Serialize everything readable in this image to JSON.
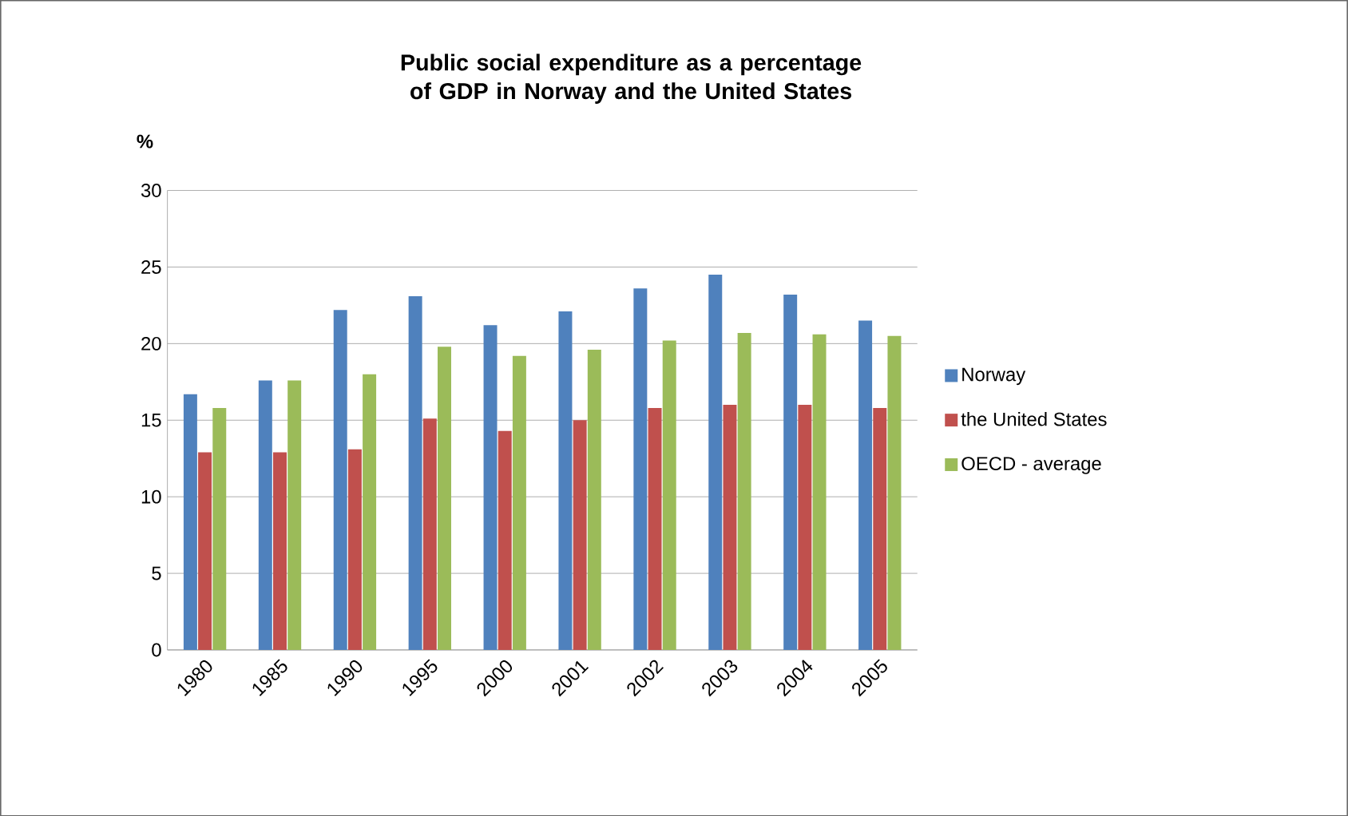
{
  "chart_data": {
    "type": "bar",
    "title": "Public social expenditure as a percentage of GDP in Norway and the United States",
    "ylabel": "%",
    "categories": [
      "1980",
      "1985",
      "1990",
      "1995",
      "2000",
      "2001",
      "2002",
      "2003",
      "2004",
      "2005"
    ],
    "series": [
      {
        "name": "Norway",
        "color": "#4f81bd",
        "values": [
          16.7,
          17.6,
          22.2,
          23.1,
          21.2,
          22.1,
          23.6,
          24.5,
          23.2,
          21.5
        ]
      },
      {
        "name": "the United States",
        "color": "#c0504d",
        "values": [
          12.9,
          12.9,
          13.1,
          15.1,
          14.3,
          15.0,
          15.8,
          16.0,
          16.0,
          15.8
        ]
      },
      {
        "name": "OECD - average",
        "color": "#9bbb59",
        "values": [
          15.8,
          17.6,
          18.0,
          19.8,
          19.2,
          19.6,
          20.2,
          20.7,
          20.6,
          20.5
        ]
      }
    ],
    "ylim": [
      0,
      30
    ],
    "yticks": [
      0,
      5,
      10,
      15,
      20,
      25,
      30
    ],
    "grid": "y",
    "legend": "right"
  }
}
